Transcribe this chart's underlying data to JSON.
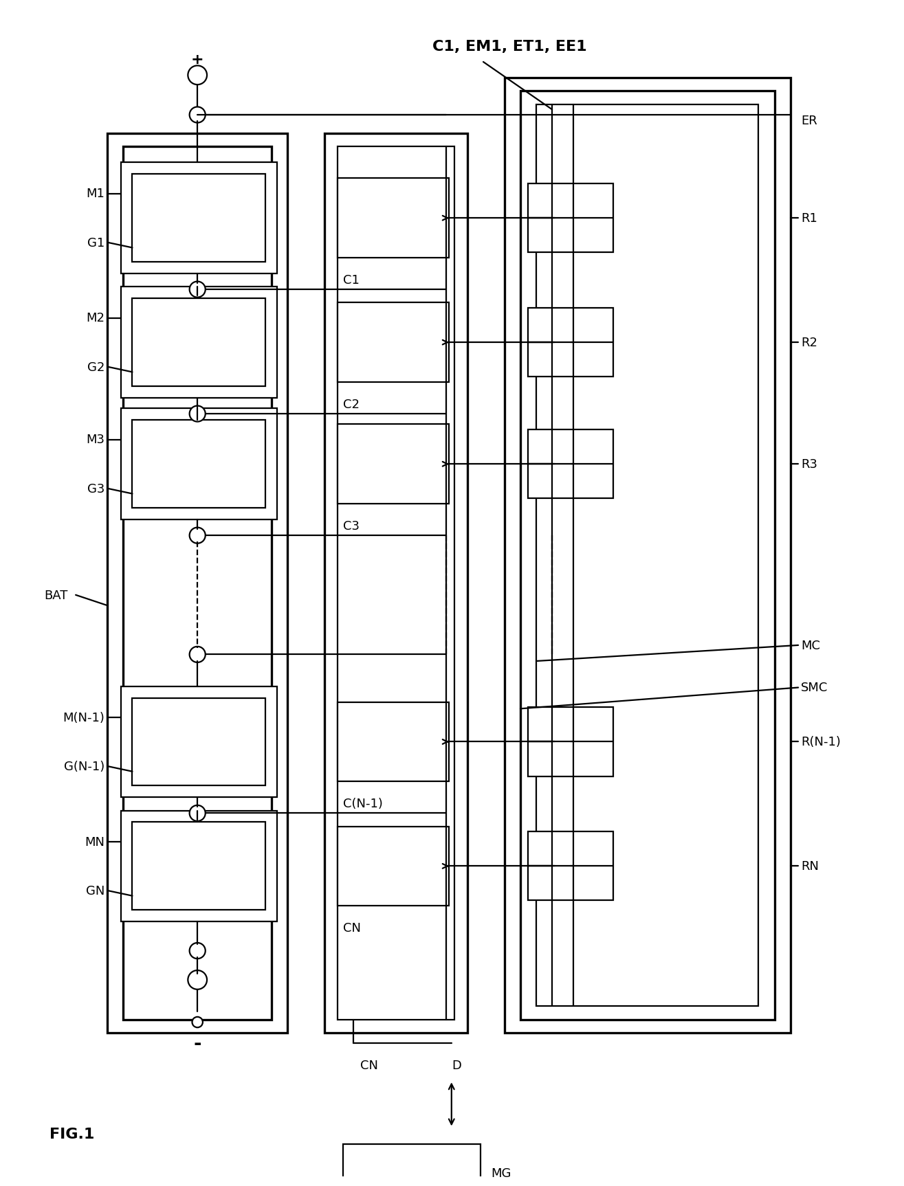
{
  "fig_width": 16.83,
  "fig_height": 22.11,
  "bg_color": "#ffffff",
  "title_label": "FIG.1",
  "main_label": "C1, EM1, ET1, EE1",
  "label_ER": "ER",
  "label_MG": "MG",
  "label_BAT": "BAT",
  "label_MC": "MC",
  "label_SMC": "SMC",
  "label_D": "D",
  "label_CN": "CN",
  "label_plus": "+",
  "label_minus": "-",
  "module_labels_M": [
    "M1",
    "M2",
    "M3",
    "M(N-1)",
    "MN"
  ],
  "module_labels_G": [
    "G1",
    "G2",
    "G3",
    "G(N-1)",
    "GN"
  ],
  "c_labels": [
    "C1",
    "C2",
    "C3",
    "C(N-1)",
    "CN"
  ],
  "r_labels": [
    "R1",
    "R2",
    "R3",
    "R(N-1)",
    "RN"
  ],
  "lw": 1.6,
  "lw_thick": 2.4,
  "fs": 13,
  "fs_large": 16
}
